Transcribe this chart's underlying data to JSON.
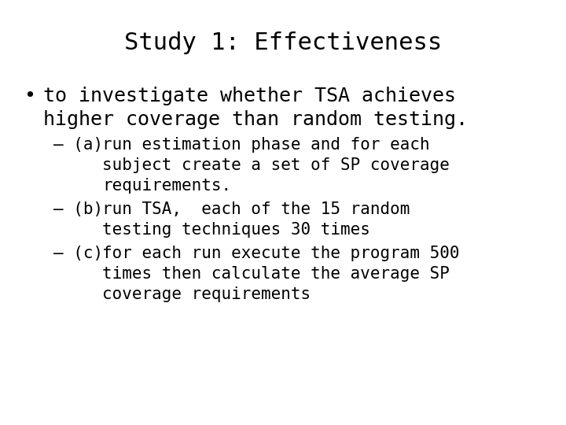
{
  "title": "Study 1: Effectiveness",
  "background_color": "#ffffff",
  "text_color": "#000000",
  "title_fontsize": 22,
  "bullet_fontsize": 18,
  "sub_fontsize": 15,
  "font_family": "DejaVu Sans Mono",
  "bullet_char": "•",
  "bullet_line1": "to investigate whether TSA achieves",
  "bullet_line2": "higher coverage than random testing.",
  "sub_items": [
    {
      "prefix": "– (a) ",
      "lines": [
        "run estimation phase and for each",
        "subject create a set of SP coverage",
        "requirements."
      ]
    },
    {
      "prefix": "– (b) ",
      "lines": [
        "run TSA,  each of the 15 random",
        "testing techniques 30 times"
      ]
    },
    {
      "prefix": "– (c) ",
      "lines": [
        "for each run execute the program 500",
        "times then calculate the average SP",
        "coverage requirements"
      ]
    }
  ]
}
